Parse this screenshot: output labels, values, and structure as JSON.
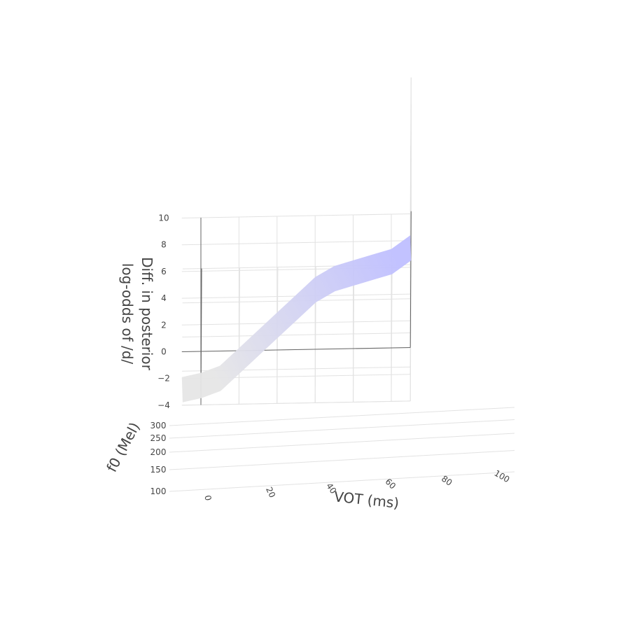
{
  "chart_data": {
    "type": "surface",
    "axes": {
      "x": {
        "title": "VOT (ms)",
        "range": [
          -10,
          110
        ],
        "ticks": [
          0,
          20,
          40,
          60,
          80,
          100
        ]
      },
      "y": {
        "title": "f0 (Mel)",
        "range": [
          100,
          300
        ],
        "ticks": [
          100,
          150,
          200,
          250,
          300
        ]
      },
      "z": {
        "title_line1": "Diff. in posterior",
        "title_line2": "log-odds of /d/",
        "range": [
          -4,
          10
        ],
        "ticks": [
          -4,
          -2,
          0,
          2,
          4,
          6,
          8,
          10
        ]
      }
    },
    "grid": true,
    "surface": {
      "edge_vot": [
        -10,
        0,
        10,
        20,
        30,
        40,
        50,
        60,
        70,
        80,
        90,
        100,
        110
      ],
      "edge_z": [
        -1.9,
        -1.6,
        -1.1,
        0.2,
        1.5,
        2.8,
        4.1,
        5.4,
        6.2,
        6.6,
        7.0,
        7.4,
        8.4
      ],
      "colorscale": [
        "#e6e6e6",
        "#bfbfff"
      ]
    },
    "zero_plane": 0
  }
}
